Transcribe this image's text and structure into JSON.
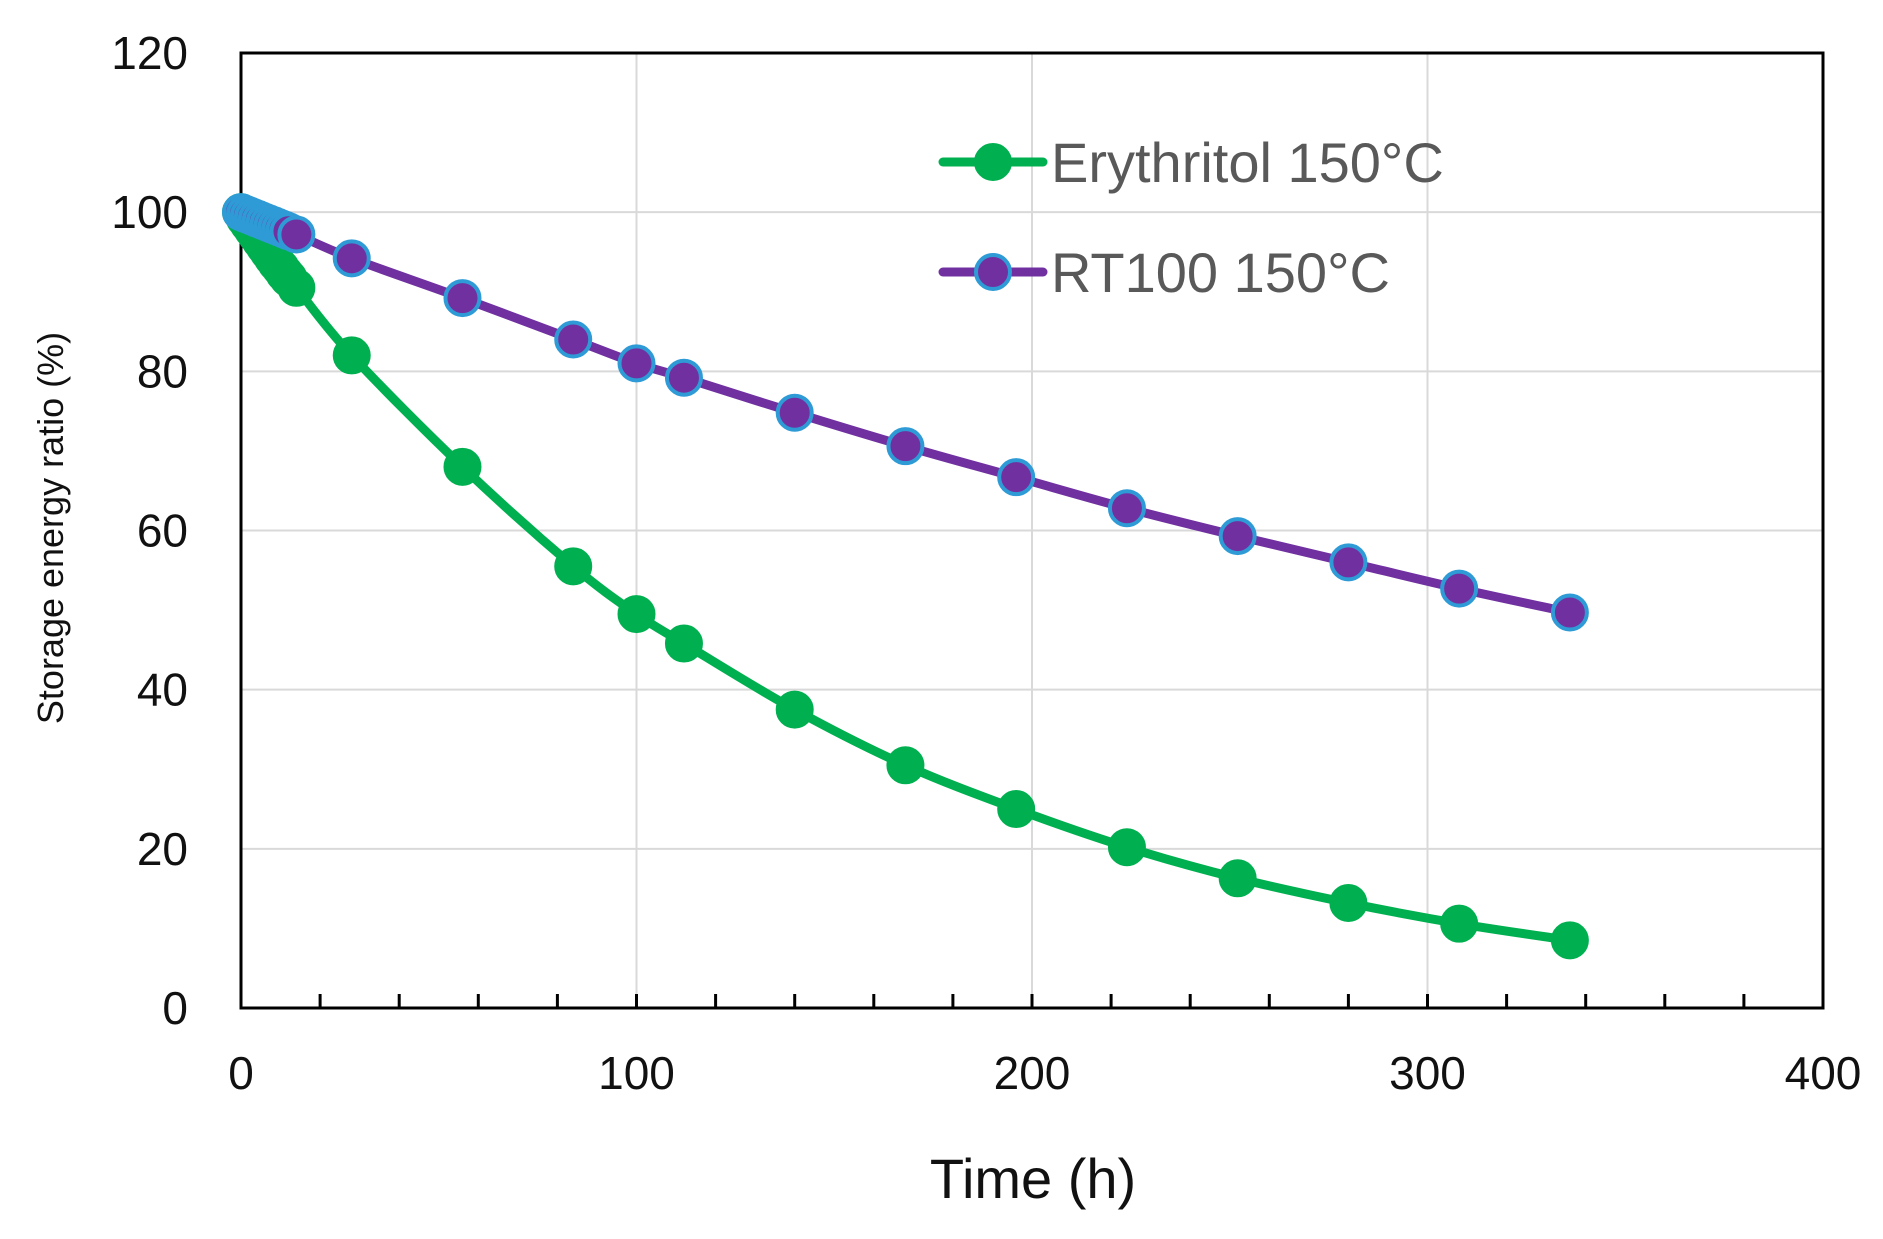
{
  "chart_data": {
    "type": "line",
    "title": "",
    "xlabel": "Time (h)",
    "ylabel": "Storage energy ratio (%)",
    "xlim": [
      0,
      400
    ],
    "ylim": [
      0,
      120
    ],
    "x_ticks": [
      0,
      100,
      200,
      300,
      400
    ],
    "y_ticks": [
      0,
      20,
      40,
      60,
      80,
      100,
      120
    ],
    "x_minor_step": 20,
    "grid": true,
    "legend_position": "top-right",
    "series": [
      {
        "name": "Erythritol 150°C",
        "color": "#00B050",
        "marker_fill": "#00B050",
        "marker_edge": "#00B050",
        "x": [
          0,
          1,
          2,
          3,
          4,
          5,
          6,
          7,
          8,
          9,
          10,
          11,
          12,
          14,
          28,
          56,
          84,
          100,
          112,
          140,
          168,
          196,
          224,
          252,
          280,
          308,
          336
        ],
        "y": [
          100,
          99.2,
          98.5,
          97.8,
          97.1,
          96.4,
          95.7,
          95.0,
          94.3,
          93.6,
          93.0,
          92.3,
          91.7,
          90.5,
          82,
          68,
          55.5,
          49.5,
          45.8,
          37.5,
          30.5,
          25,
          20.2,
          16.3,
          13.2,
          10.6,
          8.5
        ]
      },
      {
        "name": "RT100 150°C",
        "color": "#7030A0",
        "marker_fill": "#7030A0",
        "marker_edge": "#2E9BD6",
        "x": [
          0,
          1,
          2,
          3,
          4,
          5,
          6,
          7,
          8,
          9,
          10,
          11,
          12,
          14,
          28,
          56,
          84,
          100,
          112,
          140,
          168,
          196,
          224,
          252,
          280,
          308,
          336
        ],
        "y": [
          100,
          99.8,
          99.6,
          99.4,
          99.2,
          99.0,
          98.8,
          98.6,
          98.4,
          98.2,
          98.0,
          97.8,
          97.6,
          97.2,
          94.2,
          89.2,
          84,
          81,
          79.2,
          74.8,
          70.6,
          66.7,
          62.8,
          59.3,
          56,
          52.7,
          49.7
        ]
      }
    ]
  }
}
